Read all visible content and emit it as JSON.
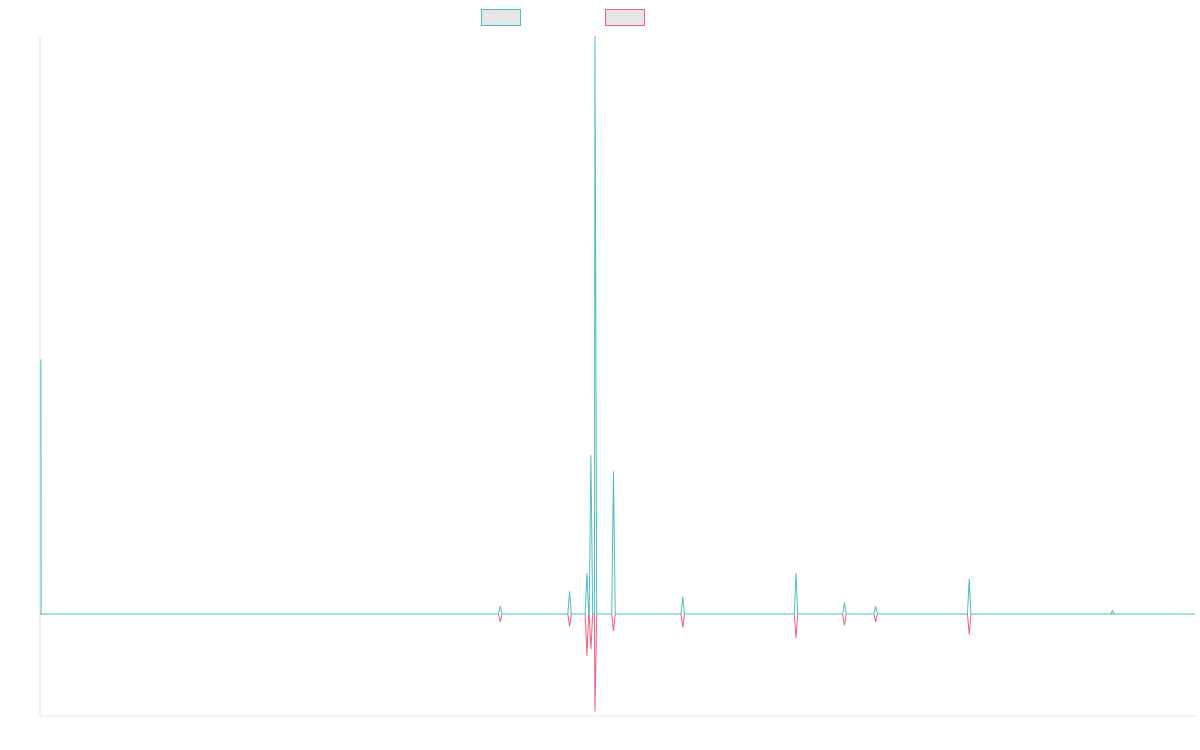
{
  "colors": {
    "series_1": "#4bbfc3",
    "series_2": "#f0607f",
    "legend_fill": "#e5e5e5",
    "axis": "#e6e6e6"
  },
  "legend": {
    "position": "top-center",
    "entries": [
      {
        "series": 0,
        "label": ""
      },
      {
        "series": 1,
        "label": ""
      }
    ]
  },
  "chart_data": {
    "type": "line",
    "title": "",
    "xlabel": "",
    "ylabel": "",
    "xlim": [
      0,
      1000
    ],
    "ylim": [
      -45,
      255
    ],
    "grid": false,
    "x": [
      0,
      0.8,
      1,
      2,
      397,
      398.5,
      400,
      457,
      458.5,
      460,
      472,
      473.5,
      475,
      475.5,
      477,
      478.5,
      480,
      480.5,
      482,
      495,
      496.5,
      498,
      555,
      556.5,
      558,
      653,
      654.5,
      656,
      695,
      696.5,
      698,
      722,
      723.5,
      725,
      803,
      804.5,
      806,
      927,
      928.5,
      930,
      1000
    ],
    "series": [
      {
        "name": "",
        "values": [
          112,
          112,
          0,
          0,
          0,
          3.5,
          0,
          0,
          10,
          0,
          0,
          18,
          0,
          0,
          70,
          0,
          0,
          255,
          0,
          0,
          63,
          0,
          0,
          7.5,
          0,
          0,
          18,
          0,
          0,
          5,
          0,
          0,
          3.5,
          0,
          0,
          15.5,
          0,
          0,
          1.5,
          0,
          0
        ]
      },
      {
        "name": "",
        "values": [
          0,
          0,
          0,
          0,
          0,
          -3.5,
          0,
          0,
          -5.5,
          0,
          0,
          -18.5,
          0,
          0,
          -15.5,
          0,
          0,
          -43,
          0,
          0,
          -7.5,
          0,
          0,
          -6,
          0,
          0,
          -10.5,
          0,
          0,
          -5,
          0,
          0,
          -3.5,
          0,
          0,
          -9,
          0,
          0,
          0,
          0,
          0
        ]
      }
    ]
  }
}
